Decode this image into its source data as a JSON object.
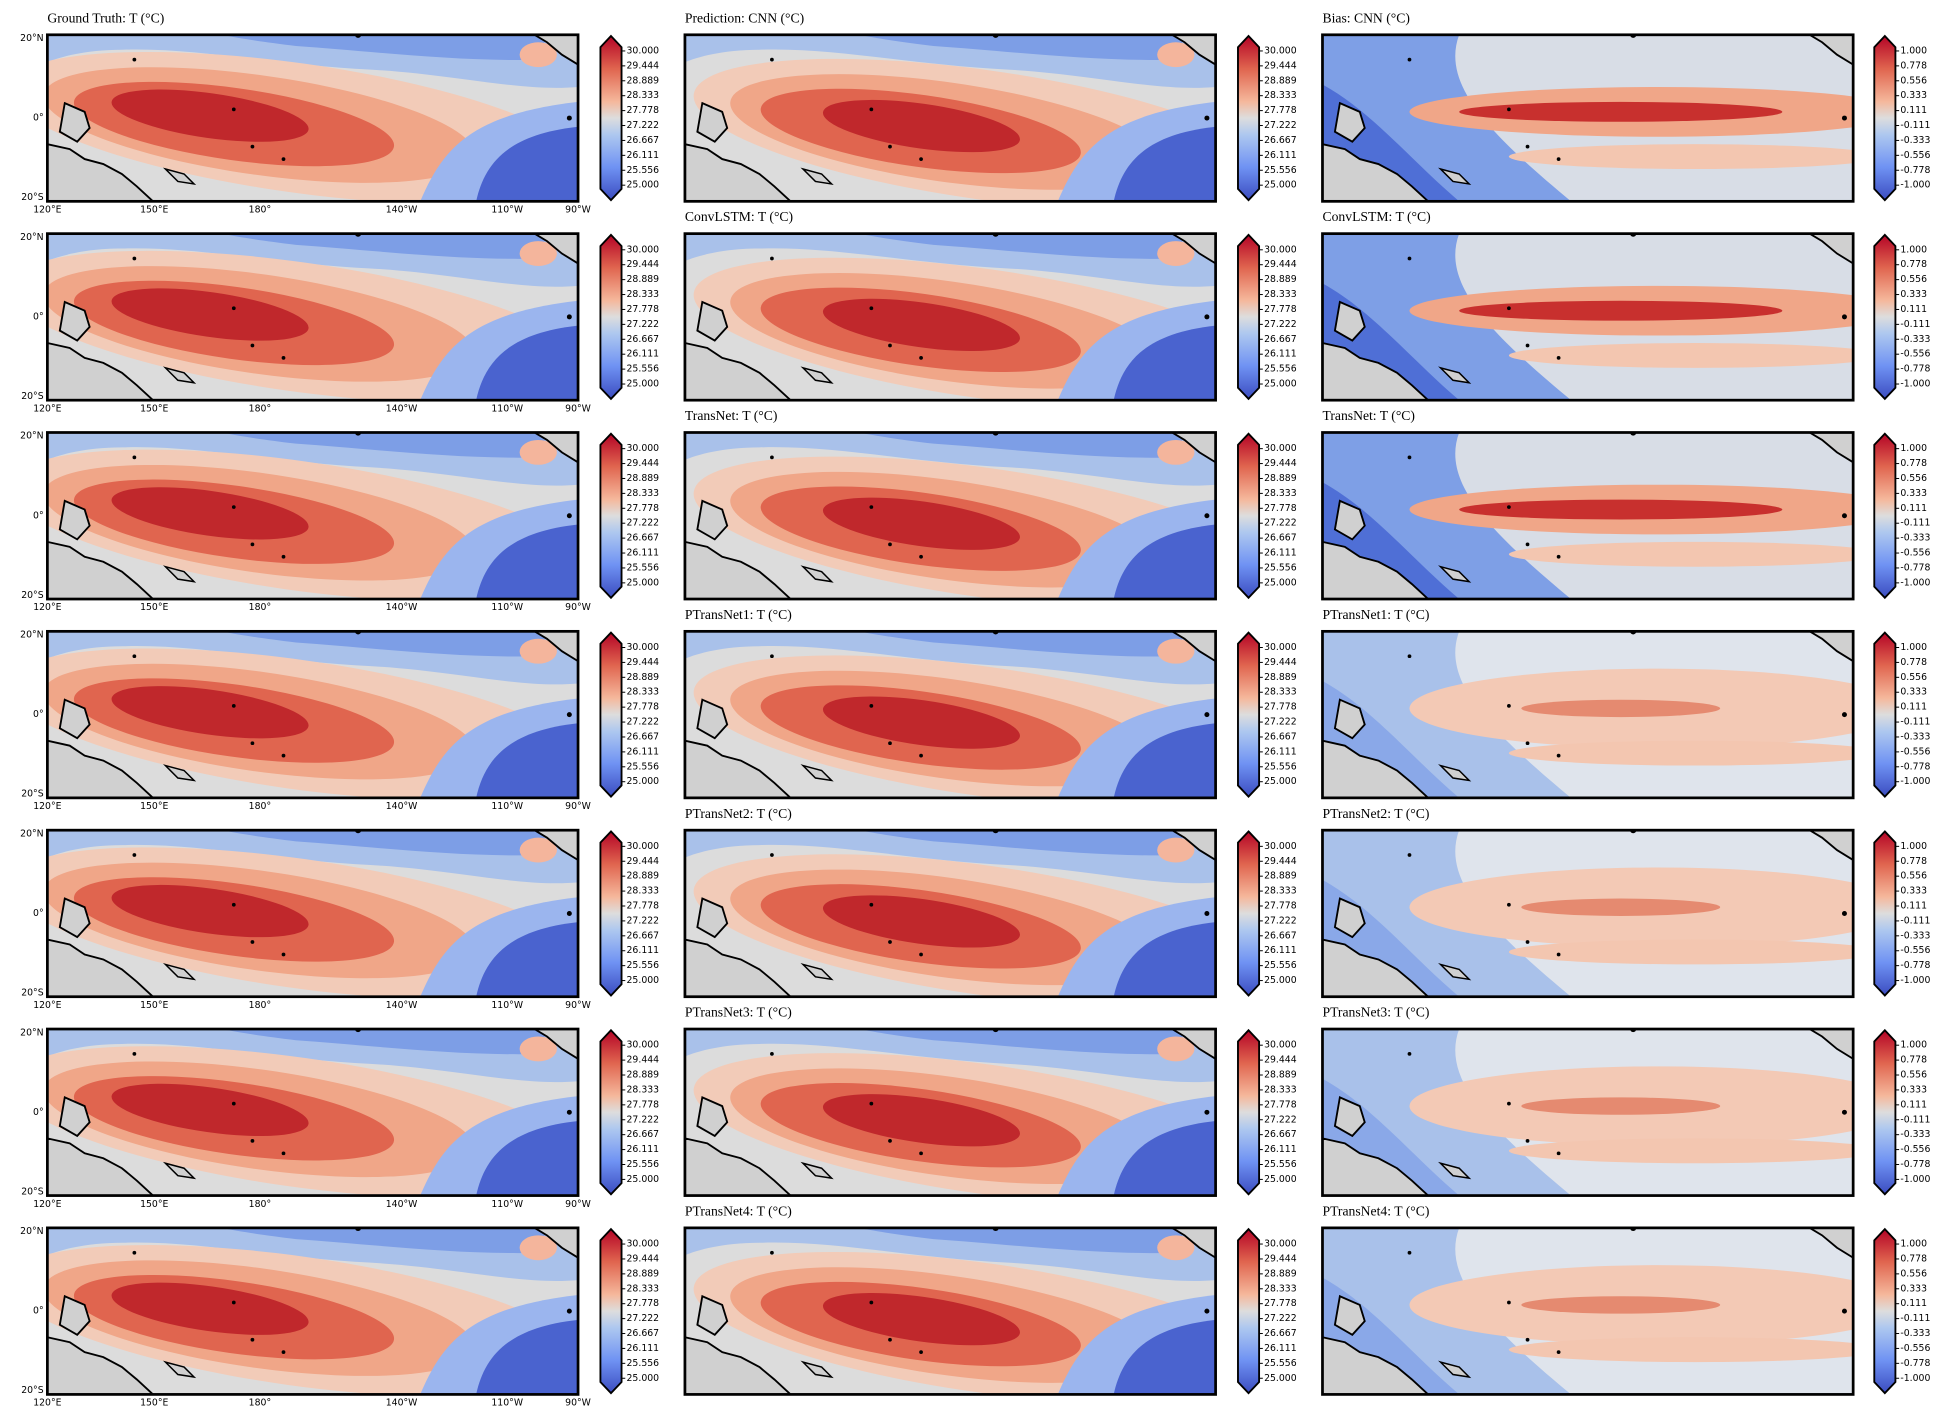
{
  "ground_truth_title": "Ground Truth: T (°C)",
  "rows": [
    {
      "prediction_title": "Prediction: CNN (°C)",
      "bias_title": "Bias: CNN (°C)"
    },
    {
      "prediction_title": "ConvLSTM: T (°C)",
      "bias_title": "ConvLSTM: T (°C)"
    },
    {
      "prediction_title": "TransNet: T (°C)",
      "bias_title": "TransNet: T (°C)"
    },
    {
      "prediction_title": "PTransNet1: T (°C)",
      "bias_title": "PTransNet1: T (°C)"
    },
    {
      "prediction_title": "PTransNet2: T (°C)",
      "bias_title": "PTransNet2: T (°C)"
    },
    {
      "prediction_title": "PTransNet3: T (°C)",
      "bias_title": "PTransNet3: T (°C)"
    },
    {
      "prediction_title": "PTransNet4: T (°C)",
      "bias_title": "PTransNet4: T (°C)"
    }
  ],
  "lat_ticks": [
    "20°N",
    "0°",
    "20°S"
  ],
  "lon_ticks": [
    "120°E",
    "150°E",
    "180°",
    "140°W",
    "110°W",
    "90°W"
  ],
  "temperature_ticks": [
    "30.000",
    "29.444",
    "28.889",
    "28.333",
    "27.778",
    "27.222",
    "26.667",
    "26.111",
    "25.556",
    "25.000"
  ],
  "bias_ticks": [
    "1.000",
    "0.778",
    "0.556",
    "0.333",
    "0.111",
    "-0.111",
    "-0.333",
    "-0.556",
    "-0.778",
    "-1.000"
  ]
}
